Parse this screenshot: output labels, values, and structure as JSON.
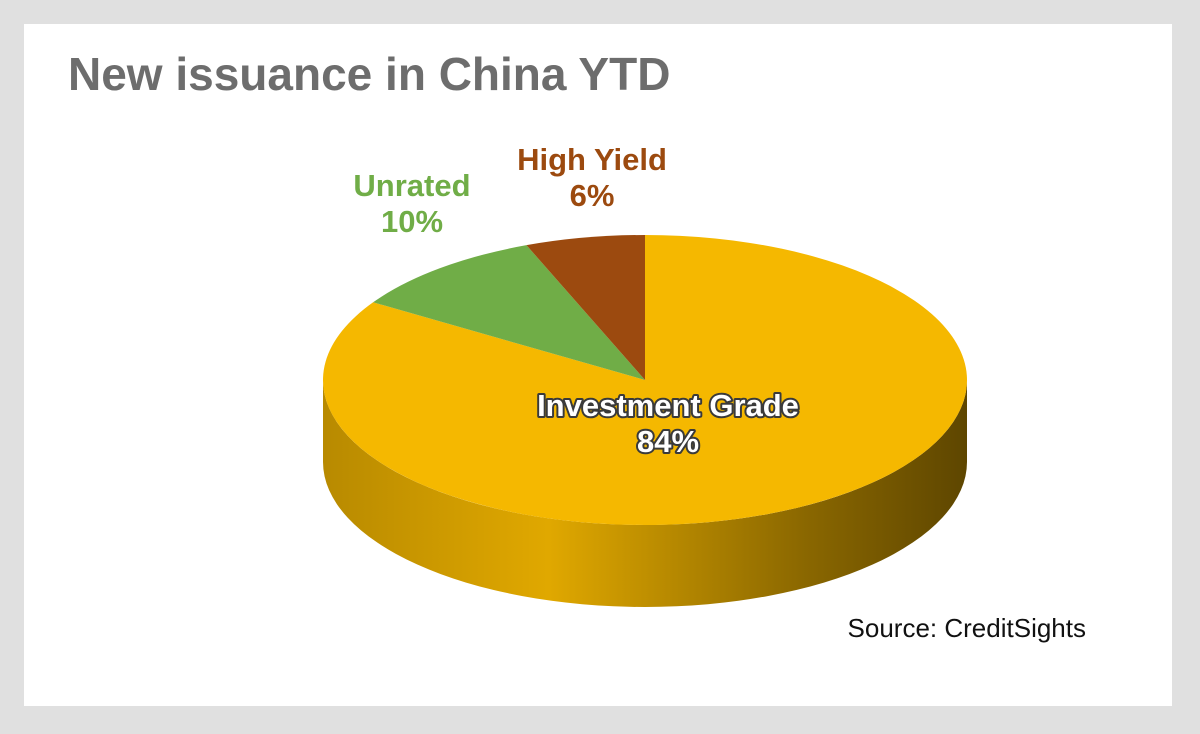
{
  "chart_data": {
    "type": "pie",
    "title": "New issuance in China YTD",
    "source": "Source: CreditSights",
    "categories": [
      "Investment Grade",
      "Unrated",
      "High Yield"
    ],
    "values": [
      84,
      10,
      6
    ],
    "value_labels": [
      "84%",
      "10%",
      "6%"
    ],
    "colors": [
      "#f5b800",
      "#70ad47",
      "#9c4a0f"
    ],
    "label_colors": [
      "#ffffff",
      "#70ad47",
      "#9c4a0f"
    ]
  }
}
